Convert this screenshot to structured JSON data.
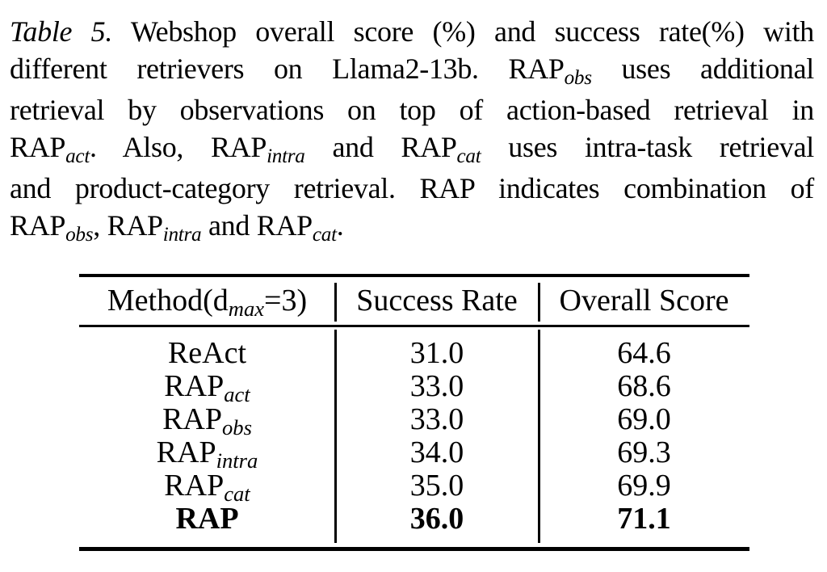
{
  "colors": {
    "text": "#000000",
    "rule": "#000000",
    "background": "#ffffff"
  },
  "caption": {
    "lines": [
      {
        "justify": true,
        "segments": [
          {
            "t": "Table 5.",
            "style": "italic"
          },
          {
            "t": " Webshop overall score (%) and success rate(%) with",
            "style": "normal"
          }
        ]
      },
      {
        "justify": true,
        "segments": [
          {
            "t": "different retrievers on Llama2-13b.  RAP",
            "style": "normal"
          },
          {
            "t": "obs",
            "style": "sub"
          },
          {
            "t": " uses additional",
            "style": "normal"
          }
        ]
      },
      {
        "justify": true,
        "segments": [
          {
            "t": "retrieval by observations on top of action-based retrieval in",
            "style": "normal"
          }
        ]
      },
      {
        "justify": true,
        "segments": [
          {
            "t": "RAP",
            "style": "normal"
          },
          {
            "t": "act",
            "style": "sub"
          },
          {
            "t": ".  Also, RAP",
            "style": "normal"
          },
          {
            "t": "intra",
            "style": "sub"
          },
          {
            "t": " and RAP",
            "style": "normal"
          },
          {
            "t": "cat",
            "style": "sub"
          },
          {
            "t": " uses intra-task retrieval",
            "style": "normal"
          }
        ]
      },
      {
        "justify": true,
        "segments": [
          {
            "t": "and product-category retrieval.  RAP indicates combination of",
            "style": "normal"
          }
        ]
      },
      {
        "justify": false,
        "segments": [
          {
            "t": "RAP",
            "style": "normal"
          },
          {
            "t": "obs",
            "style": "sub"
          },
          {
            "t": ", RAP",
            "style": "normal"
          },
          {
            "t": "intra",
            "style": "sub"
          },
          {
            "t": " and RAP",
            "style": "normal"
          },
          {
            "t": "cat",
            "style": "sub"
          },
          {
            "t": ".",
            "style": "normal"
          }
        ]
      }
    ]
  },
  "table": {
    "header": {
      "method_segments": [
        {
          "t": "Method(d",
          "style": "normal"
        },
        {
          "t": "max",
          "style": "sub"
        },
        {
          "t": "=3)",
          "style": "normal"
        }
      ],
      "success": "Success Rate",
      "overall": "Overall Score"
    },
    "rows": [
      {
        "method": {
          "base": "ReAct",
          "sub": ""
        },
        "success": "31.0",
        "overall": "64.6",
        "bold": false
      },
      {
        "method": {
          "base": "RAP",
          "sub": "act"
        },
        "success": "33.0",
        "overall": "68.6",
        "bold": false
      },
      {
        "method": {
          "base": "RAP",
          "sub": "obs"
        },
        "success": "33.0",
        "overall": "69.0",
        "bold": false
      },
      {
        "method": {
          "base": "RAP",
          "sub": "intra"
        },
        "success": "34.0",
        "overall": "69.3",
        "bold": false
      },
      {
        "method": {
          "base": "RAP",
          "sub": "cat"
        },
        "success": "35.0",
        "overall": "69.9",
        "bold": false
      },
      {
        "method": {
          "base": "RAP",
          "sub": ""
        },
        "success": "36.0",
        "overall": "71.1",
        "bold": true
      }
    ]
  },
  "chart_data": {
    "type": "table",
    "title": "Table 5. Webshop overall score (%) and success rate (%) with different retrievers on Llama2-13b",
    "columns": [
      "Method(d_max=3)",
      "Success Rate",
      "Overall Score"
    ],
    "rows": [
      [
        "ReAct",
        31.0,
        64.6
      ],
      [
        "RAP_act",
        33.0,
        68.6
      ],
      [
        "RAP_obs",
        33.0,
        69.0
      ],
      [
        "RAP_intra",
        34.0,
        69.3
      ],
      [
        "RAP_cat",
        35.0,
        69.9
      ],
      [
        "RAP",
        36.0,
        71.1
      ]
    ]
  }
}
